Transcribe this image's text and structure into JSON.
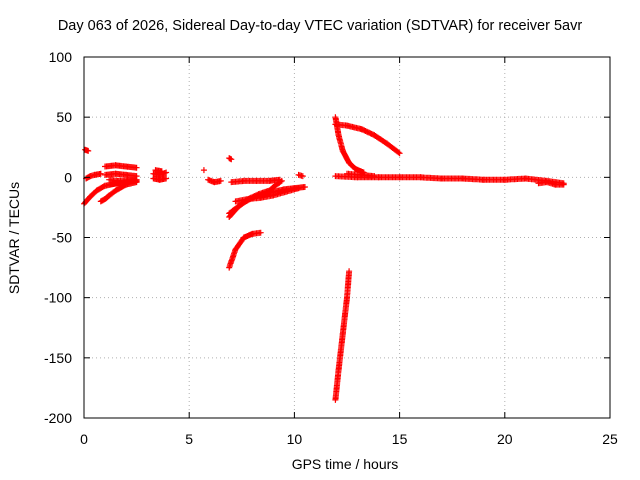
{
  "chart_data": {
    "type": "scatter",
    "title": "Day 063 of 2026, Sidereal Day-to-day VTEC variation (SDTVAR) for receiver 5avr",
    "xlabel": "GPS time / hours",
    "ylabel": "SDTVAR / TECUs",
    "xlim": [
      0,
      25
    ],
    "ylim": [
      -200,
      100
    ],
    "xticks": [
      "0",
      "5",
      "10",
      "15",
      "20",
      "25"
    ],
    "yticks": [
      "100",
      "50",
      "0",
      "-50",
      "-100",
      "-150",
      "-200"
    ],
    "grid": true,
    "legend": "none",
    "marker": "+",
    "color": "#ff0000",
    "segments": [
      {
        "x": [
          0.0,
          0.3,
          0.6,
          1.0,
          1.5,
          2.0
        ],
        "y": [
          -22,
          -16,
          -11,
          -7,
          -5,
          -4
        ]
      },
      {
        "x": [
          0.1,
          0.3,
          0.5,
          0.8
        ],
        "y": [
          -1,
          1,
          2,
          3
        ]
      },
      {
        "x": [
          0.05,
          0.2
        ],
        "y": [
          23,
          22
        ]
      },
      {
        "x": [
          0.8,
          1.0,
          1.2
        ],
        "y": [
          -20,
          -18,
          -15
        ]
      },
      {
        "x": [
          1.0,
          1.5,
          2.0,
          2.5
        ],
        "y": [
          -18,
          -11,
          -6,
          -4
        ]
      },
      {
        "x": [
          1.2,
          1.6,
          2.0,
          2.5
        ],
        "y": [
          -6,
          -5,
          -4,
          -3
        ]
      },
      {
        "x": [
          1.0,
          1.5,
          2.0,
          2.5
        ],
        "y": [
          9,
          10,
          9,
          8
        ]
      },
      {
        "x": [
          1.0,
          1.5,
          2.0,
          2.5
        ],
        "y": [
          2,
          3,
          2,
          1
        ]
      },
      {
        "x": [
          1.2,
          1.6,
          2.0,
          2.5
        ],
        "y": [
          -2,
          -3,
          -3,
          -2
        ]
      },
      {
        "x": [
          3.3,
          3.6,
          3.9
        ],
        "y": [
          3,
          2,
          4
        ]
      },
      {
        "x": [
          3.3,
          3.6,
          3.9
        ],
        "y": [
          -1,
          -2,
          -1
        ]
      },
      {
        "x": [
          3.4,
          3.7
        ],
        "y": [
          6,
          5
        ]
      },
      {
        "x": [
          5.7
        ],
        "y": [
          6
        ]
      },
      {
        "x": [
          5.9,
          6.2,
          6.5
        ],
        "y": [
          -2,
          -4,
          -3
        ]
      },
      {
        "x": [
          6.9,
          7.0
        ],
        "y": [
          16,
          15
        ]
      },
      {
        "x": [
          6.9,
          7.2,
          7.6,
          8.0,
          8.4
        ],
        "y": [
          -75,
          -60,
          -50,
          -47,
          -46
        ]
      },
      {
        "x": [
          6.9,
          7.3,
          7.8,
          8.3,
          8.8
        ],
        "y": [
          -33,
          -25,
          -18,
          -14,
          -11
        ]
      },
      {
        "x": [
          6.9,
          7.5,
          8.0,
          8.5,
          9.0
        ],
        "y": [
          -30,
          -22,
          -17,
          -14,
          -12
        ]
      },
      {
        "x": [
          7.0,
          7.6,
          8.2,
          8.8,
          9.3
        ],
        "y": [
          -4,
          -3,
          -3,
          -3,
          -2
        ]
      },
      {
        "x": [
          7.2,
          7.8,
          8.4,
          9.0,
          9.6,
          10.2
        ],
        "y": [
          -20,
          -18,
          -17,
          -15,
          -12,
          -9
        ]
      },
      {
        "x": [
          8.6,
          9.0,
          9.4
        ],
        "y": [
          -15,
          -8,
          -3
        ]
      },
      {
        "x": [
          9.0,
          9.5,
          10.0,
          10.5
        ],
        "y": [
          -12,
          -10,
          -9,
          -8
        ]
      },
      {
        "x": [
          10.2,
          10.4
        ],
        "y": [
          2,
          1
        ]
      },
      {
        "x": [
          11.95,
          12.1,
          12.3,
          12.5,
          12.6
        ],
        "y": [
          -185,
          -160,
          -130,
          -100,
          -78
        ]
      },
      {
        "x": [
          11.95,
          12.1,
          12.3,
          12.6,
          12.9,
          13.3
        ],
        "y": [
          50,
          35,
          22,
          12,
          7,
          4
        ]
      },
      {
        "x": [
          11.95,
          12.5,
          13.2,
          13.8,
          14.4,
          15.0
        ],
        "y": [
          44,
          43,
          40,
          35,
          28,
          20
        ]
      },
      {
        "x": [
          11.95,
          13,
          14,
          15,
          16,
          17,
          18,
          19,
          20,
          21,
          22,
          22.8
        ],
        "y": [
          1,
          0,
          0,
          0,
          0,
          -1,
          -1,
          -2,
          -2,
          -1,
          -3,
          -5
        ]
      },
      {
        "x": [
          12.5,
          13.2,
          13.8
        ],
        "y": [
          3,
          2,
          1
        ]
      },
      {
        "x": [
          21.6,
          22.0,
          22.4,
          22.8
        ],
        "y": [
          -5,
          -4,
          -6,
          -6
        ]
      }
    ]
  }
}
